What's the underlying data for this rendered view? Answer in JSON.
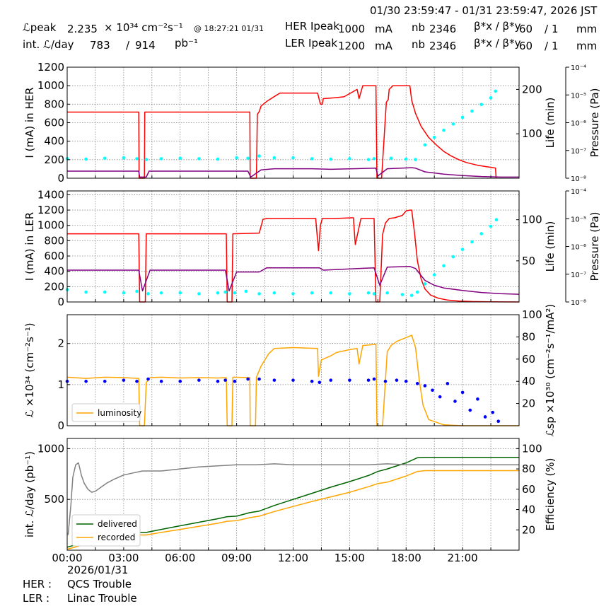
{
  "header": {
    "date_range": "01/30 23:59:47 - 01/31 23:59:47, 2026 JST",
    "lpeak_label": "ℒpeak",
    "lpeak_value": "2.235",
    "lpeak_unit": "× 10³⁴ cm⁻²s⁻¹",
    "lpeak_time": "@ 18:27:21 01/31",
    "intl_label": "int. ℒ/day",
    "intl_recorded": "783",
    "intl_sep": "/",
    "intl_delivered": "914",
    "intl_unit": "pb⁻¹",
    "her_label": "HER Ipeak",
    "her_value": "1000",
    "her_unit": "mA",
    "her_nb_label": "nb",
    "her_nb": "2346",
    "her_beta_label": "β*x / β*y",
    "her_beta_x": "60",
    "her_beta_sep": "/",
    "her_beta_y": "1",
    "her_beta_unit": "mm",
    "ler_label": "LER Ipeak",
    "ler_value": "1200",
    "ler_unit": "mA",
    "ler_nb_label": "nb",
    "ler_nb": "2346",
    "ler_beta_label": "β*x / β*y",
    "ler_beta_x": "60",
    "ler_beta_sep": "/",
    "ler_beta_y": "1",
    "ler_beta_unit": "mm"
  },
  "footer": {
    "date": "2026/01/31",
    "her_label": "HER :",
    "her_status": "QCS Trouble",
    "ler_label": "LER :",
    "ler_status": "Linac Trouble"
  },
  "colors": {
    "current": "#ff0000",
    "lifetime": "#00ffff",
    "pressure": "#800080",
    "luminosity": "#ffa500",
    "specific_lumi": "#0000ff",
    "delivered": "#006400",
    "recorded": "#ffa500",
    "efficiency": "#808080"
  },
  "chart_data": [
    {
      "type": "line",
      "title": "",
      "xlabel": "",
      "ylabel": "I (mA) in HER",
      "ylim": [
        0,
        1200
      ],
      "yticks": [
        "0",
        "200",
        "400",
        "600",
        "800",
        "1000",
        "1200"
      ],
      "y2label": "Life (min)",
      "y2lim": [
        0,
        250
      ],
      "y2ticks": [
        "100",
        "200"
      ],
      "y3label": "Pressure (Pa)",
      "y3scale": "log",
      "y3lim": [
        1e-08,
        0.0001
      ],
      "y3ticks": [
        "10⁻⁸",
        "10⁻⁷",
        "10⁻⁶",
        "10⁻⁵",
        "10⁻⁴"
      ],
      "xlim": [
        0,
        24
      ],
      "grid": true,
      "series": [
        {
          "role": "current",
          "axis": "left",
          "style": "line",
          "x": [
            0,
            3.8,
            3.82,
            4.1,
            4.12,
            9.7,
            9.72,
            10.05,
            10.1,
            10.2,
            10.3,
            10.6,
            10.9,
            11.3,
            13.3,
            13.45,
            13.55,
            13.6,
            14.2,
            14.7,
            15.4,
            15.5,
            15.7,
            16.4,
            16.45,
            16.7,
            16.95,
            17.05,
            17.1,
            17.3,
            18.2,
            18.3,
            18.5,
            18.8,
            19.2,
            19.6,
            20.0,
            20.4,
            20.8,
            21.2,
            21.8,
            22.4,
            22.75,
            22.78
          ],
          "y": [
            715,
            715,
            0,
            0,
            715,
            715,
            0,
            0,
            690,
            720,
            780,
            830,
            870,
            920,
            920,
            800,
            800,
            860,
            870,
            880,
            960,
            860,
            1000,
            1000,
            0,
            0,
            820,
            850,
            960,
            1000,
            1000,
            840,
            700,
            560,
            440,
            360,
            290,
            240,
            200,
            170,
            140,
            120,
            110,
            0
          ]
        },
        {
          "role": "lifetime",
          "axis": "right",
          "style": "scatter",
          "x": [
            0,
            1,
            2,
            3,
            3.7,
            4.2,
            5,
            6,
            7,
            8,
            9,
            9.6,
            10.2,
            11,
            12,
            13,
            14,
            15,
            16,
            16.3,
            17.2,
            18,
            18.5,
            19,
            19.5,
            20,
            20.5,
            21,
            21.5,
            22,
            22.5,
            22.75
          ],
          "y": [
            44,
            43,
            45,
            46,
            44,
            42,
            44,
            45,
            44,
            43,
            46,
            45,
            50,
            46,
            46,
            44,
            43,
            44,
            42,
            44,
            45,
            43,
            42,
            75,
            92,
            108,
            122,
            137,
            151,
            166,
            181,
            196
          ]
        },
        {
          "role": "pressure",
          "axis": "right2",
          "style": "line",
          "x": [
            0,
            3.8,
            3.85,
            4.2,
            4.35,
            9.6,
            9.75,
            10.3,
            11,
            13,
            14,
            16.4,
            16.5,
            17,
            18.3,
            18.5,
            19,
            20,
            21,
            22,
            23,
            24
          ],
          "y": [
            1.8e-08,
            1.8e-08,
            1.1e-08,
            1.1e-08,
            1.8e-08,
            1.8e-08,
            1.1e-08,
            2e-08,
            2.2e-08,
            2.2e-08,
            2.1e-08,
            2.3e-08,
            1.2e-08,
            2.2e-08,
            2.4e-08,
            2.3e-08,
            1.7e-08,
            1.4e-08,
            1.25e-08,
            1.15e-08,
            1.1e-08,
            1.1e-08
          ]
        }
      ]
    },
    {
      "type": "line",
      "title": "",
      "xlabel": "",
      "ylabel": "I (mA) in LER",
      "ylim": [
        0,
        1450
      ],
      "yticks": [
        "0",
        "200",
        "400",
        "600",
        "800",
        "1000",
        "1200",
        "1400"
      ],
      "y2label": "Life (min)",
      "y2lim": [
        0,
        135
      ],
      "y2ticks": [
        "50",
        "100"
      ],
      "y3label": "Pressure (Pa)",
      "y3scale": "log",
      "y3lim": [
        1e-08,
        0.0001
      ],
      "y3ticks": [
        "10⁻⁸",
        "10⁻⁷",
        "10⁻⁶",
        "10⁻⁵",
        "10⁻⁴"
      ],
      "xlim": [
        0,
        24
      ],
      "grid": true,
      "series": [
        {
          "role": "current",
          "axis": "left",
          "style": "line",
          "x": [
            0,
            3.8,
            3.85,
            4.15,
            4.2,
            8.45,
            8.5,
            8.75,
            8.8,
            10.2,
            10.4,
            10.6,
            13.2,
            13.35,
            13.45,
            13.55,
            14.2,
            15.2,
            15.3,
            15.6,
            16.3,
            16.4,
            16.5,
            16.6,
            16.75,
            16.9,
            17.1,
            17.4,
            17.8,
            18.0,
            18.2,
            18.3,
            18.45,
            18.6,
            18.8,
            19.0,
            19.3,
            19.7,
            20.2,
            20.8,
            21.5,
            22.3,
            23.2,
            24
          ],
          "y": [
            890,
            890,
            0,
            0,
            890,
            890,
            0,
            0,
            890,
            900,
            1080,
            1090,
            1090,
            670,
            1000,
            1090,
            1090,
            1100,
            750,
            1090,
            1090,
            0,
            0,
            0,
            880,
            1030,
            1090,
            1100,
            1130,
            1190,
            1200,
            1200,
            900,
            540,
            300,
            170,
            90,
            50,
            25,
            12,
            6,
            3,
            1,
            0
          ]
        },
        {
          "role": "lifetime",
          "axis": "right",
          "style": "scatter",
          "x": [
            0,
            1,
            2,
            3,
            3.7,
            4.3,
            5,
            6,
            7,
            8,
            8.4,
            8.9,
            9.5,
            10.2,
            11,
            12,
            13,
            14,
            15,
            16,
            16.3,
            17,
            17.8,
            18.3,
            18.6,
            19,
            19.5,
            20,
            20.5,
            21,
            21.5,
            22,
            22.5,
            22.8
          ],
          "y": [
            15,
            12,
            12,
            11,
            13,
            10,
            11,
            11,
            10,
            11,
            12,
            11,
            13,
            10,
            11,
            10,
            11,
            11,
            10,
            11,
            10,
            11,
            9,
            8,
            12,
            22,
            33,
            44,
            55,
            64,
            73,
            83,
            92,
            100
          ]
        },
        {
          "role": "pressure",
          "axis": "right2",
          "style": "line",
          "x": [
            0,
            3.8,
            4.0,
            4.4,
            8.4,
            8.6,
            9.0,
            10.2,
            10.6,
            13.4,
            13.6,
            16.3,
            16.6,
            17.0,
            18.2,
            18.5,
            19,
            19.5,
            20,
            21,
            22,
            23,
            24
          ],
          "y": [
            1.4e-07,
            1.4e-07,
            2.5e-08,
            1.4e-07,
            1.4e-07,
            2.5e-08,
            1.2e-07,
            1.2e-07,
            1.7e-07,
            1.7e-07,
            1.4e-07,
            1.7e-07,
            4e-08,
            1.8e-07,
            1.9e-07,
            1.6e-07,
            6e-08,
            4e-08,
            3.2e-08,
            2.6e-08,
            2.2e-08,
            2e-08,
            1.9e-08
          ]
        }
      ]
    },
    {
      "type": "line",
      "title": "",
      "xlabel": "",
      "ylabel": "ℒ ×10³⁴ (cm⁻²s⁻¹)",
      "ylim": [
        0,
        2.7
      ],
      "yticks": [
        "0",
        "1",
        "2"
      ],
      "y2label": "ℒsp ×10³⁰ (cm⁻²s⁻¹/mA²)",
      "y2lim": [
        0,
        100
      ],
      "y2ticks": [
        "20",
        "40",
        "60",
        "80",
        "100"
      ],
      "xlim": [
        0,
        24
      ],
      "grid": true,
      "legend": {
        "position": "lower-left",
        "entries": [
          "luminosity"
        ]
      },
      "series": [
        {
          "name": "luminosity",
          "axis": "left",
          "style": "line",
          "x": [
            0,
            1,
            2,
            3,
            3.8,
            3.85,
            4.1,
            4.2,
            4.4,
            5,
            6,
            7,
            8,
            8.45,
            8.5,
            8.75,
            8.8,
            9.7,
            9.72,
            10.0,
            10.05,
            10.3,
            10.7,
            11,
            12,
            13.3,
            13.35,
            13.5,
            14.0,
            14.3,
            15.0,
            15.4,
            15.5,
            15.7,
            16.4,
            16.45,
            16.75,
            17.0,
            17.2,
            17.5,
            18.2,
            18.3,
            18.5,
            18.7,
            18.9,
            19.2,
            20,
            21,
            24
          ],
          "y": [
            1.18,
            1.15,
            1.18,
            1.17,
            1.15,
            0,
            0,
            1.05,
            1.17,
            1.18,
            1.16,
            1.17,
            1.16,
            1.17,
            0,
            0,
            1.18,
            1.17,
            0,
            0,
            1.18,
            1.45,
            1.75,
            1.88,
            1.9,
            1.88,
            1.2,
            1.6,
            1.7,
            1.78,
            1.85,
            1.88,
            1.5,
            1.95,
            1.98,
            0,
            0,
            1.8,
            1.95,
            2.05,
            2.18,
            2.2,
            1.9,
            1.1,
            0.5,
            0.15,
            0.02,
            0,
            0
          ]
        },
        {
          "name": "specific luminosity",
          "axis": "right",
          "style": "scatter",
          "x": [
            0,
            1,
            2,
            3,
            3.7,
            4.3,
            5,
            6,
            7,
            8,
            8.4,
            8.9,
            9.6,
            10.2,
            11,
            12,
            13,
            13.4,
            14,
            15,
            16,
            16.3,
            16.9,
            17.5,
            18,
            18.6,
            19,
            19.4,
            19.8,
            20.2,
            20.6,
            21,
            21.4,
            21.8,
            22.2,
            22.6,
            22.9
          ],
          "y": [
            40,
            40,
            40,
            41,
            40,
            42,
            40,
            40,
            41,
            40,
            41,
            40,
            42,
            42,
            41,
            41,
            40,
            39,
            41,
            41,
            41,
            42,
            40,
            41,
            40,
            38,
            36,
            32,
            26,
            38,
            22,
            30,
            14,
            24,
            8,
            12,
            4
          ]
        }
      ]
    },
    {
      "type": "line",
      "title": "",
      "xlabel": "",
      "ylabel": "int. ℒ/day (pb⁻¹)",
      "ylim": [
        0,
        1100
      ],
      "yticks": [
        "500",
        "1000"
      ],
      "y2label": "Efficiency (%)",
      "y2lim": [
        0,
        110
      ],
      "y2ticks": [
        "20",
        "40",
        "60",
        "80",
        "100"
      ],
      "xlim": [
        0,
        24
      ],
      "xticks": [
        "00:00",
        "03:00",
        "06:00",
        "09:00",
        "12:00",
        "15:00",
        "18:00",
        "21:00"
      ],
      "grid": true,
      "legend": {
        "position": "lower-left",
        "entries": [
          "delivered",
          "recorded"
        ]
      },
      "series": [
        {
          "name": "delivered",
          "axis": "left",
          "style": "line",
          "x": [
            0,
            0.5,
            1,
            2,
            3,
            3.8,
            4.2,
            5,
            6,
            7,
            8,
            8.5,
            9,
            9.7,
            10.2,
            11,
            12,
            13,
            14,
            15,
            16,
            16.5,
            17,
            18,
            18.6,
            19,
            20,
            24
          ],
          "y": [
            30,
            55,
            80,
            120,
            150,
            175,
            175,
            205,
            240,
            275,
            310,
            330,
            335,
            370,
            385,
            440,
            500,
            560,
            620,
            675,
            735,
            775,
            800,
            860,
            910,
            914,
            914,
            914
          ]
        },
        {
          "name": "recorded",
          "axis": "left",
          "style": "line",
          "x": [
            0,
            0.5,
            1,
            2,
            3,
            3.8,
            4.2,
            5,
            6,
            7,
            8,
            8.5,
            9,
            9.7,
            10.2,
            11,
            12,
            13,
            14,
            15,
            16,
            16.5,
            17,
            18,
            18.6,
            19,
            20,
            24
          ],
          "y": [
            10,
            35,
            60,
            95,
            125,
            150,
            150,
            175,
            205,
            235,
            265,
            285,
            290,
            320,
            335,
            380,
            430,
            480,
            525,
            570,
            625,
            655,
            670,
            730,
            775,
            783,
            783,
            783
          ]
        },
        {
          "name": "efficiency",
          "axis": "right",
          "style": "line",
          "x": [
            0.05,
            0.2,
            0.3,
            0.45,
            0.6,
            0.75,
            0.9,
            1.1,
            1.3,
            1.5,
            1.8,
            2.1,
            2.5,
            3,
            3.5,
            4,
            5,
            6,
            7,
            8,
            9,
            10,
            11,
            12,
            13,
            14,
            15,
            16,
            17,
            18,
            19,
            20,
            21,
            22,
            23,
            24
          ],
          "y": [
            15,
            45,
            72,
            84,
            86,
            74,
            66,
            60,
            57,
            58,
            62,
            66,
            70,
            74,
            76,
            78,
            78,
            80,
            82,
            83,
            84,
            84,
            85,
            84,
            84,
            84,
            84,
            84,
            85,
            84,
            84,
            84,
            84,
            84,
            84,
            84
          ]
        }
      ]
    }
  ]
}
